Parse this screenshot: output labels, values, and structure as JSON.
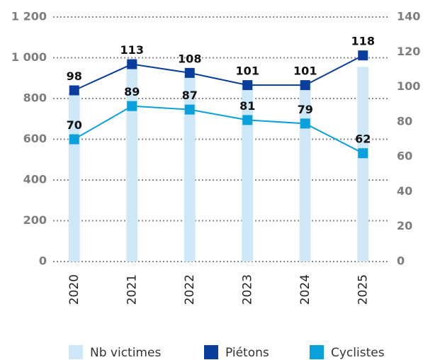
{
  "chart_data": {
    "type": "bar_line",
    "categories": [
      "2020",
      "2021",
      "2022",
      "2023",
      "2024",
      "2025"
    ],
    "series": [
      {
        "name": "Nb victimes",
        "color": "#cfe8f8",
        "type": "bar",
        "values": [
          830,
          985,
          905,
          880,
          880,
          955
        ]
      },
      {
        "name": "Piétons",
        "color": "#0a3d9c",
        "type": "line",
        "axis": "y2",
        "values": [
          98,
          113,
          108,
          101,
          101,
          118
        ]
      },
      {
        "name": "Cyclistes",
        "color": "#0aa0dc",
        "type": "line",
        "axis": "y2",
        "values": [
          70,
          89,
          87,
          81,
          79,
          62
        ]
      }
    ],
    "ylim": [
      0,
      1200
    ],
    "yticks": [
      0,
      200,
      400,
      600,
      800,
      {
        "value": 1000,
        "label": "1 000"
      },
      {
        "value": 1200,
        "label": "1 200"
      }
    ],
    "y2lim": [
      0,
      140
    ],
    "y2ticks": [
      0,
      20,
      40,
      60,
      80,
      100,
      120,
      140
    ],
    "grid": true,
    "legend": "bottom"
  }
}
